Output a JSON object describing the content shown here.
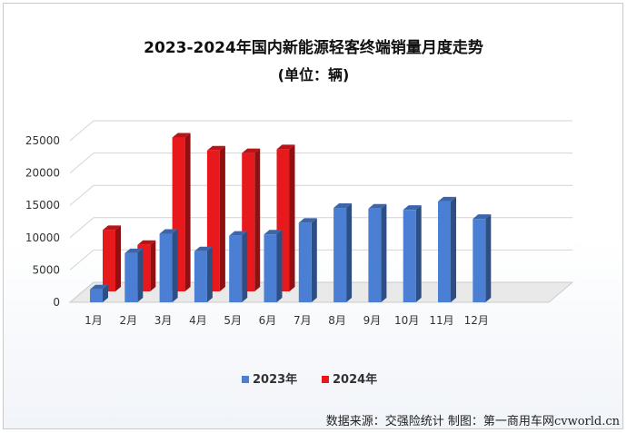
{
  "chart_data": {
    "type": "bar",
    "title": "2023-2024年国内新能源轻客终端销量月度走势",
    "subtitle": "(单位：辆)",
    "categories": [
      "1月",
      "2月",
      "3月",
      "4月",
      "5月",
      "6月",
      "7月",
      "8月",
      "9月",
      "10月",
      "11月",
      "12月"
    ],
    "series": [
      {
        "name": "2023年",
        "color": "#4a7fd4",
        "values": [
          2000,
          7600,
          10600,
          7900,
          10300,
          10500,
          12300,
          14600,
          14500,
          14300,
          15600,
          12900
        ]
      },
      {
        "name": "2024年",
        "color": "#e8191c",
        "values": [
          9500,
          7200,
          23800,
          21800,
          21400,
          22000,
          null,
          null,
          null,
          null,
          null,
          null
        ]
      }
    ],
    "y_ticks": [
      0,
      5000,
      10000,
      15000,
      20000,
      25000
    ],
    "ylim": [
      0,
      25000
    ],
    "grid": true,
    "legend_position": "bottom"
  },
  "source": "数据来源：交强险统计  制图：第一商用车网",
  "watermark": "cvworld.cn"
}
